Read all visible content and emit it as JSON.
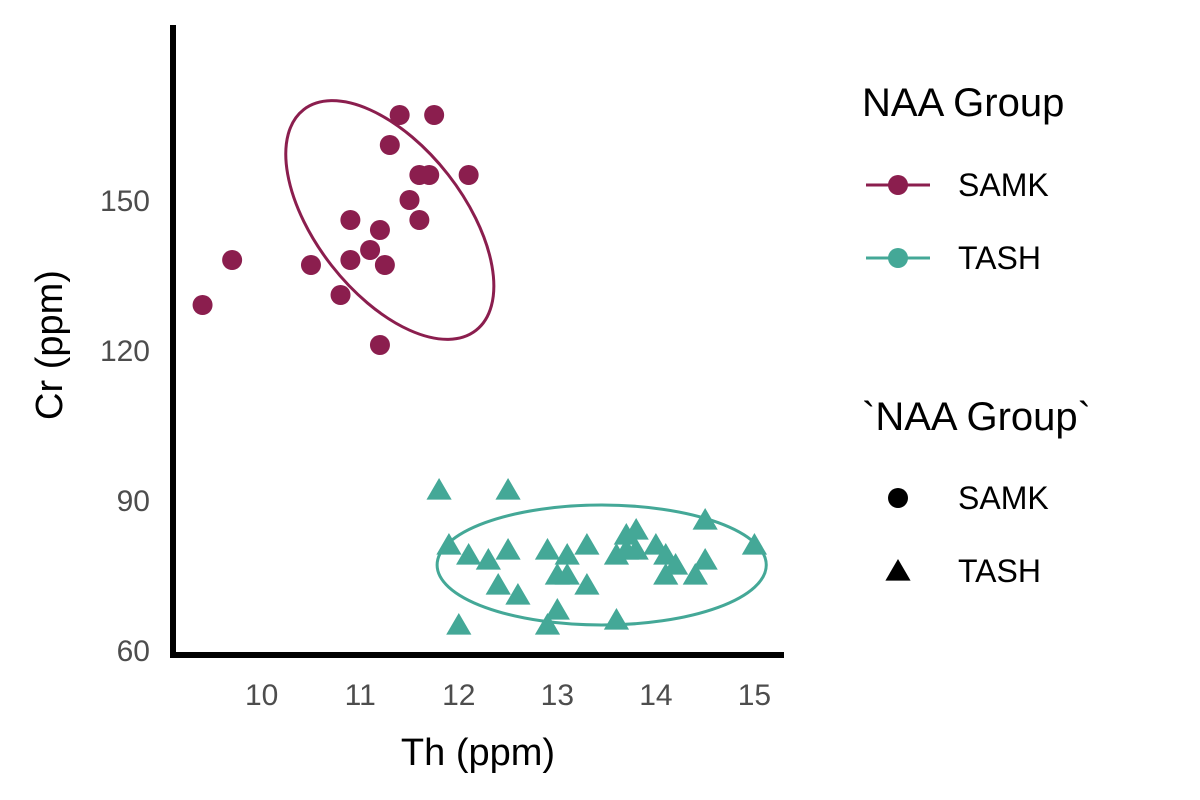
{
  "chart_data": {
    "type": "scatter",
    "xlabel": "Th (ppm)",
    "ylabel": "Cr (ppm)",
    "xlim": [
      9.1,
      15.3
    ],
    "ylim": [
      59,
      185
    ],
    "x_ticks": [
      10,
      11,
      12,
      13,
      14,
      15
    ],
    "y_ticks": [
      60,
      90,
      120,
      150
    ],
    "grid": false,
    "legend_placement": "right",
    "legends": [
      {
        "title": "NAA Group",
        "entries": [
          {
            "label": "SAMK",
            "color": "#8B1E4E",
            "marker": "line-point"
          },
          {
            "label": "TASH",
            "color": "#44A897",
            "marker": "line-point"
          }
        ]
      },
      {
        "title": "`NAA Group`",
        "entries": [
          {
            "label": "SAMK",
            "color": "#000000",
            "marker": "circle"
          },
          {
            "label": "TASH",
            "color": "#000000",
            "marker": "triangle"
          }
        ]
      }
    ],
    "series": [
      {
        "name": "SAMK",
        "color": "#8B1E4E",
        "marker": "circle",
        "points": [
          [
            9.4,
            129
          ],
          [
            9.7,
            138
          ],
          [
            10.5,
            137
          ],
          [
            10.8,
            131
          ],
          [
            10.9,
            138
          ],
          [
            10.9,
            146
          ],
          [
            11.1,
            140
          ],
          [
            11.2,
            144
          ],
          [
            11.2,
            121
          ],
          [
            11.25,
            137
          ],
          [
            11.3,
            161
          ],
          [
            11.4,
            167
          ],
          [
            11.5,
            150
          ],
          [
            11.6,
            155
          ],
          [
            11.6,
            146
          ],
          [
            11.7,
            155
          ],
          [
            11.75,
            167
          ],
          [
            12.1,
            155
          ]
        ],
        "ellipse": {
          "cx": 11.3,
          "cy": 146,
          "rx": 0.75,
          "ry": 28,
          "angle_deg": 38
        }
      },
      {
        "name": "TASH",
        "color": "#44A897",
        "marker": "triangle",
        "points": [
          [
            11.8,
            92
          ],
          [
            11.9,
            81
          ],
          [
            12.0,
            65
          ],
          [
            12.1,
            79
          ],
          [
            12.3,
            78
          ],
          [
            12.4,
            73
          ],
          [
            12.5,
            92
          ],
          [
            12.5,
            80
          ],
          [
            12.6,
            71
          ],
          [
            12.9,
            80
          ],
          [
            12.9,
            65
          ],
          [
            13.0,
            75
          ],
          [
            13.0,
            68
          ],
          [
            13.1,
            75
          ],
          [
            13.1,
            79
          ],
          [
            13.3,
            81
          ],
          [
            13.3,
            73
          ],
          [
            13.6,
            66
          ],
          [
            13.6,
            79
          ],
          [
            13.7,
            80
          ],
          [
            13.7,
            83
          ],
          [
            13.8,
            80
          ],
          [
            13.8,
            84
          ],
          [
            14.0,
            81
          ],
          [
            14.1,
            75
          ],
          [
            14.1,
            79
          ],
          [
            14.2,
            77
          ],
          [
            14.4,
            75
          ],
          [
            14.5,
            86
          ],
          [
            14.5,
            78
          ],
          [
            15.0,
            81
          ]
        ],
        "ellipse": {
          "cx": 13.45,
          "cy": 77,
          "rx": 1.67,
          "ry": 12,
          "angle_deg": 0
        }
      }
    ]
  }
}
